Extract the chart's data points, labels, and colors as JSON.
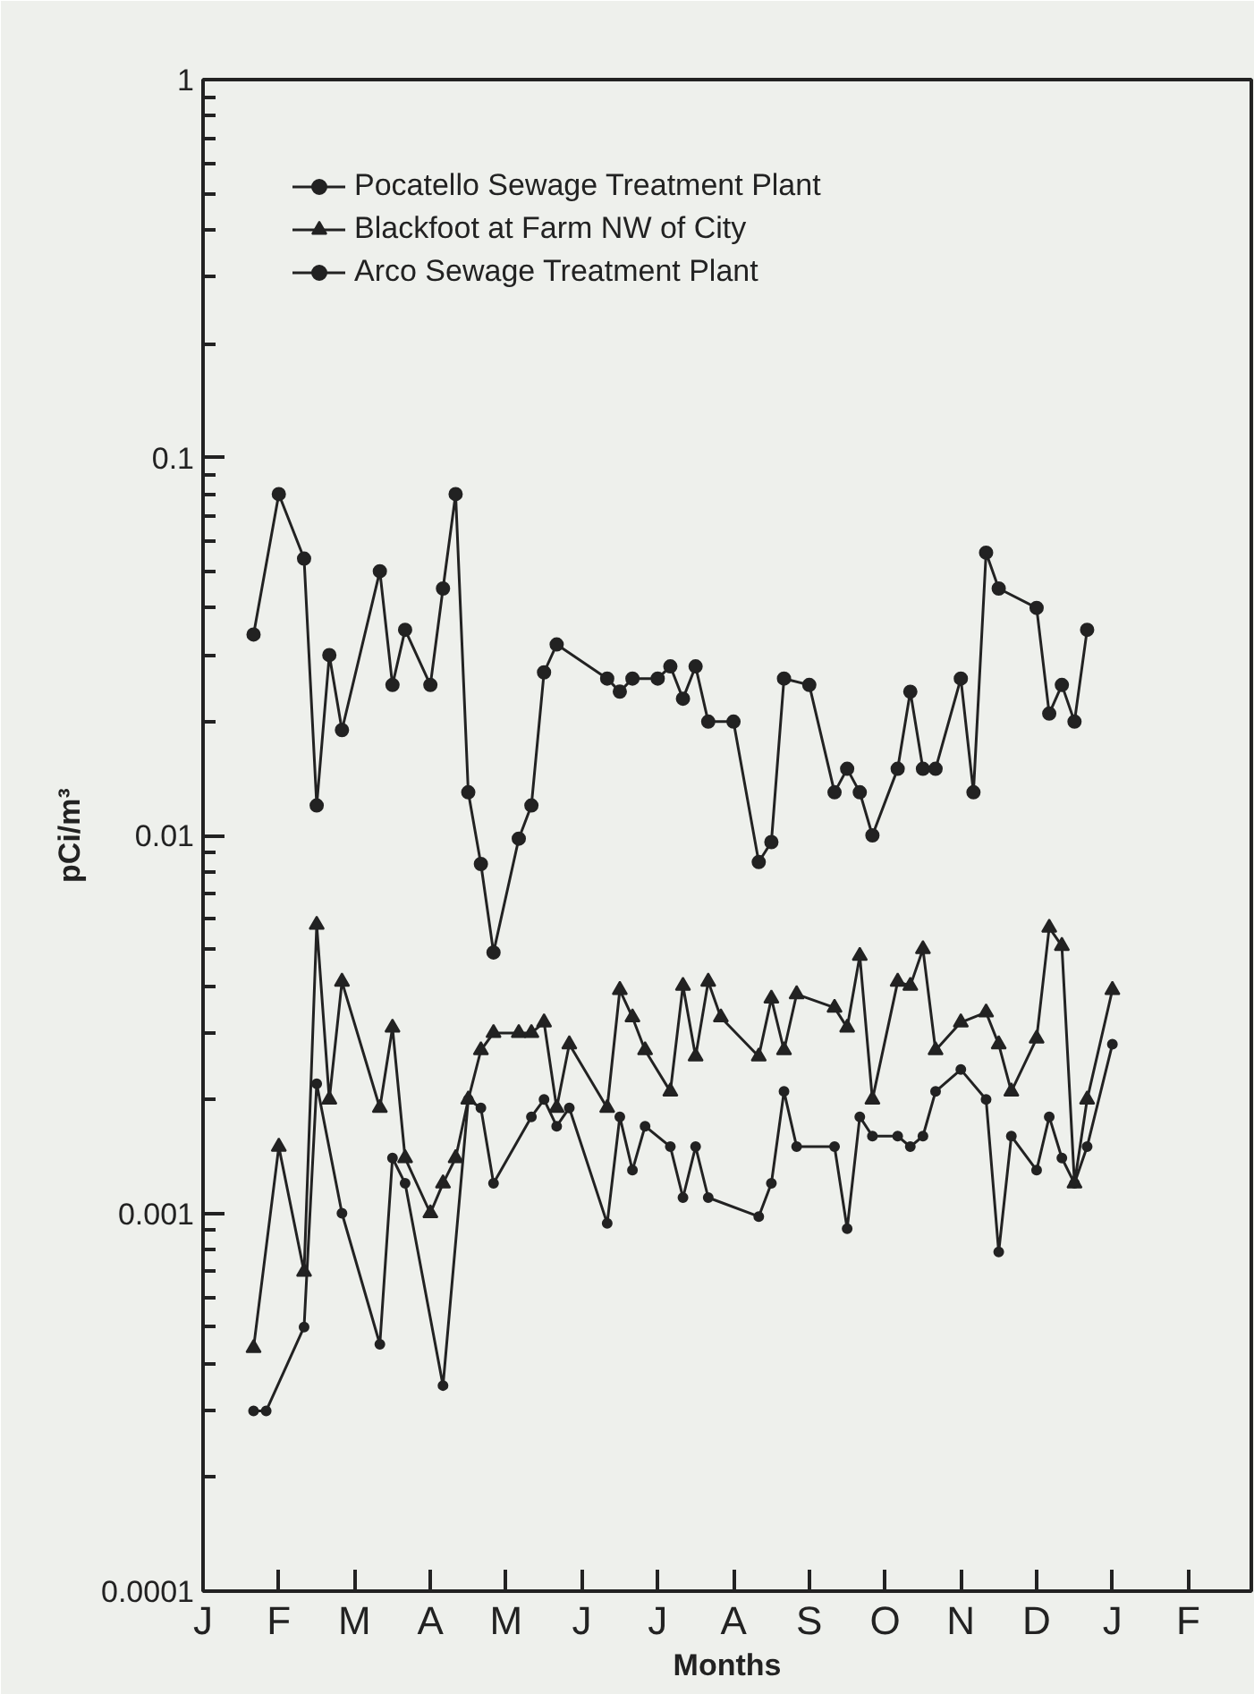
{
  "chart_data": {
    "type": "line",
    "xlabel": "Months",
    "ylabel": "pCi/m³",
    "log": true,
    "legend": "top left",
    "grid": false,
    "categories": [
      "J",
      null,
      null,
      null,
      null,
      null,
      "F",
      null,
      null,
      null,
      null,
      null,
      "M",
      null,
      null,
      null,
      null,
      null,
      "A",
      null,
      null,
      null,
      null,
      null,
      "M",
      null,
      null,
      null,
      null,
      null,
      "J",
      null,
      null,
      null,
      null,
      null,
      "J",
      null,
      null,
      null,
      null,
      null,
      "A",
      null,
      null,
      null,
      null,
      null,
      "S",
      null,
      null,
      null,
      null,
      null,
      "O",
      null,
      null,
      null,
      null,
      null,
      "N",
      null,
      null,
      null,
      null,
      null,
      "D",
      null,
      null,
      null,
      null,
      null,
      "J",
      null,
      null,
      null,
      null,
      null,
      "F",
      null,
      null,
      null,
      null,
      null
    ],
    "ylim": [
      0.0001,
      1
    ],
    "yticks": [
      {
        "value": 0.0001,
        "label": "0.0001"
      },
      {
        "value": 0.001,
        "label": "0.001"
      },
      {
        "value": 0.01,
        "label": "0.01"
      },
      {
        "value": 0.1,
        "label": "0.1"
      },
      1
    ],
    "series": [
      {
        "name": "Pocatello Sewage Treatment Plant",
        "color": "#222222",
        "marker": "circle",
        "values": [
          null,
          null,
          null,
          null,
          0.034,
          null,
          0.08,
          null,
          0.054,
          0.012,
          0.03,
          0.019,
          null,
          null,
          0.05,
          0.025,
          0.035,
          null,
          0.025,
          0.045,
          0.08,
          0.013,
          0.0084,
          0.0049,
          null,
          0.0098,
          0.012,
          0.027,
          0.032,
          null,
          null,
          null,
          0.026,
          0.024,
          0.026,
          null,
          0.026,
          0.028,
          0.023,
          0.028,
          0.02,
          null,
          0.02,
          null,
          0.0085,
          0.0096,
          0.026,
          null,
          0.025,
          null,
          0.013,
          0.015,
          0.013,
          0.01,
          null,
          0.015,
          0.024,
          0.015,
          0.015,
          null,
          0.026,
          0.013,
          0.056,
          0.045,
          null,
          null,
          0.04,
          0.021,
          0.025,
          0.02,
          0.035,
          null,
          null,
          null,
          null,
          null,
          null,
          null,
          null,
          null,
          null,
          null,
          null,
          null
        ]
      },
      {
        "name": "Blackfoot at Farm NW of City",
        "color": "#222222",
        "marker": "triangle",
        "values": [
          null,
          null,
          null,
          null,
          0.00044,
          null,
          0.0015,
          null,
          0.0007,
          0.0058,
          0.002,
          0.0041,
          null,
          null,
          0.0019,
          0.0031,
          0.0014,
          null,
          0.001,
          0.0012,
          0.0014,
          0.002,
          0.0027,
          0.003,
          null,
          0.003,
          0.003,
          0.0032,
          0.0019,
          0.0028,
          null,
          null,
          0.0019,
          0.0039,
          0.0033,
          0.0027,
          null,
          0.0021,
          0.004,
          0.0026,
          0.0041,
          0.0033,
          null,
          null,
          0.0026,
          0.0037,
          0.0027,
          0.0038,
          null,
          null,
          0.0035,
          0.0031,
          0.0048,
          0.002,
          null,
          0.0041,
          0.004,
          0.005,
          0.0027,
          null,
          0.0032,
          null,
          0.0034,
          0.0028,
          0.0021,
          null,
          0.0029,
          0.0057,
          0.0051,
          0.0012,
          0.002,
          null,
          0.0039,
          null,
          null,
          null,
          null,
          null,
          null,
          null,
          null,
          null,
          null,
          null
        ]
      },
      {
        "name": "Arco Sewage Treatment Plant",
        "color": "#222222",
        "marker": "circle",
        "values": [
          null,
          null,
          null,
          null,
          0.0003,
          0.0003,
          null,
          null,
          0.0005,
          0.0022,
          null,
          0.001,
          null,
          null,
          0.00045,
          0.0014,
          0.0012,
          null,
          null,
          0.00035,
          null,
          0.002,
          0.0019,
          0.0012,
          null,
          null,
          0.0018,
          0.002,
          0.0017,
          0.0019,
          null,
          null,
          0.00094,
          0.0018,
          0.0013,
          0.0017,
          null,
          0.0015,
          0.0011,
          0.0015,
          0.0011,
          null,
          null,
          null,
          0.00098,
          0.0012,
          0.0021,
          0.0015,
          null,
          null,
          0.0015,
          0.00091,
          0.0018,
          0.0016,
          null,
          0.0016,
          0.0015,
          0.0016,
          0.0021,
          null,
          0.0024,
          null,
          0.002,
          0.00079,
          0.0016,
          null,
          0.0013,
          0.0018,
          0.0014,
          0.0012,
          0.0015,
          null,
          0.0028,
          null,
          null,
          null,
          null,
          null,
          null,
          null,
          null,
          null,
          null,
          null
        ]
      }
    ]
  }
}
